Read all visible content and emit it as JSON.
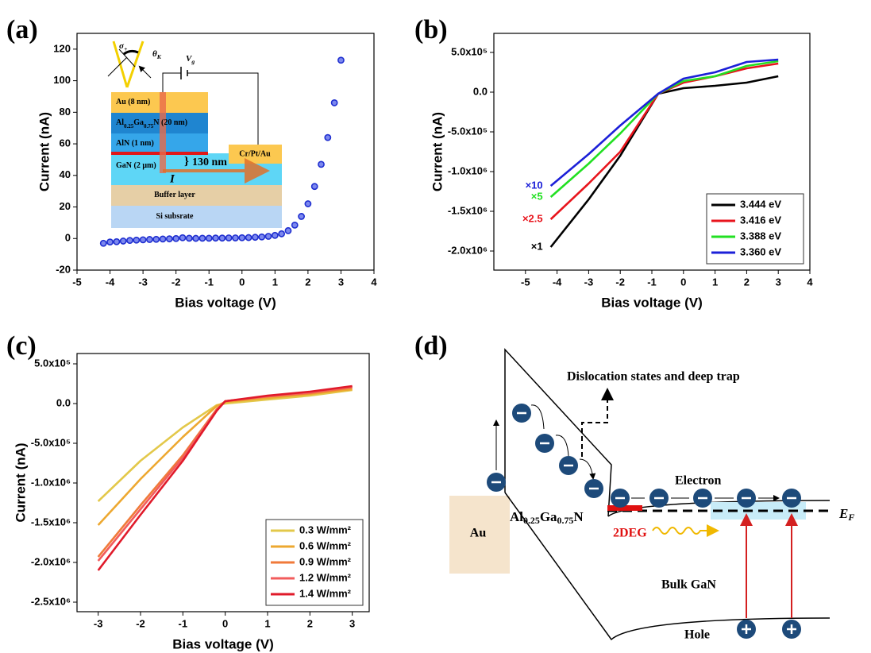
{
  "chart_data": [
    {
      "type": "scatter",
      "label": "(a)",
      "xlabel": "Bias voltage (V)",
      "ylabel": "Current (nA)",
      "color": "#1f2fd0",
      "x": [
        -4.2,
        -4.0,
        -3.8,
        -3.6,
        -3.4,
        -3.2,
        -3.0,
        -2.8,
        -2.6,
        -2.4,
        -2.2,
        -2.0,
        -1.8,
        -1.6,
        -1.4,
        -1.2,
        -1.0,
        -0.8,
        -0.6,
        -0.4,
        -0.2,
        0,
        0.2,
        0.4,
        0.6,
        0.8,
        1.0,
        1.2,
        1.4,
        1.6,
        1.8,
        2.0,
        2.2,
        2.4,
        2.6,
        2.8,
        3.0
      ],
      "values": [
        -3,
        -2.2,
        -2,
        -1.6,
        -1.2,
        -1,
        -0.8,
        -0.6,
        -0.5,
        -0.3,
        -0.2,
        0,
        0.5,
        0.2,
        0.1,
        0.2,
        0.2,
        0.3,
        0.3,
        0.4,
        0.4,
        0.5,
        0.6,
        0.8,
        1,
        1.4,
        2,
        3,
        5,
        8.5,
        14,
        22,
        33,
        47,
        64,
        86,
        113
      ],
      "xlim": [
        -5,
        4
      ],
      "xticks": [
        -5,
        -4,
        -3,
        -2,
        -1,
        0,
        1,
        2,
        3,
        4
      ],
      "ylim": [
        -20,
        130
      ],
      "yticks": [
        -20,
        0,
        20,
        40,
        60,
        80,
        100,
        120
      ],
      "inset": {
        "layers": [
          [
            "Au (8 nm)"
          ],
          [
            "Al",
            "0.25",
            "Ga",
            "0.75",
            "N (20 nm)"
          ],
          [
            "AlN (1 nm)"
          ],
          [
            "GaN (2 μm)"
          ],
          [
            "Buffer layer"
          ],
          [
            "Si subsrate"
          ]
        ],
        "contact": "Cr/Pt/Au",
        "depth": "130 nm",
        "current": "I",
        "polarization": [
          "σ",
          "+"
        ],
        "kerr_angle": [
          "θ",
          "K"
        ],
        "gate": [
          "V",
          "g"
        ]
      }
    },
    {
      "type": "line",
      "label": "(b)",
      "xlabel": "Bias voltage (V)",
      "ylabel": "Current (nA)",
      "legend": "lower right",
      "x": [
        -4.2,
        -3,
        -2,
        -0.8,
        0,
        1,
        2,
        3
      ],
      "series": [
        {
          "name": "3.444 eV",
          "color": "#000000",
          "values": [
            -1950000,
            -1350000,
            -800000,
            -20000,
            50000,
            80000,
            120000,
            200000
          ]
        },
        {
          "name": "3.416 eV",
          "color": "#e8141c",
          "values": [
            -1600000,
            -1150000,
            -750000,
            -20000,
            120000,
            200000,
            300000,
            360000
          ]
        },
        {
          "name": "3.388 eV",
          "color": "#22e022",
          "values": [
            -1320000,
            -900000,
            -520000,
            -20000,
            140000,
            200000,
            330000,
            390000
          ]
        },
        {
          "name": "3.360 eV",
          "color": "#1c20d8",
          "values": [
            -1180000,
            -780000,
            -420000,
            -20000,
            170000,
            250000,
            380000,
            410000
          ]
        }
      ],
      "annotations": [
        "×1",
        "×2.5",
        "×5",
        "×10"
      ],
      "xlim": [
        -6,
        4
      ],
      "xticks": [
        -5,
        -4,
        -3,
        -2,
        -1,
        0,
        1,
        2,
        3,
        4
      ],
      "ylim": [
        -2240000,
        740000
      ],
      "yticks": [
        {
          "value": -2000000,
          "label": "-2.0x10⁶"
        },
        {
          "value": -1500000,
          "label": "-1.5x10⁶"
        },
        {
          "value": -1000000,
          "label": "-1.0x10⁶"
        },
        {
          "value": -500000,
          "label": "-5.0x10⁵"
        },
        {
          "value": 0,
          "label": "0.0"
        },
        {
          "value": 500000,
          "label": "5.0x10⁵"
        }
      ]
    },
    {
      "type": "line",
      "label": "(c)",
      "xlabel": "Bias voltage (V)",
      "ylabel": "Current (nA)",
      "legend": "lower right",
      "x": [
        -3,
        -2,
        -1,
        -0.2,
        0,
        1,
        2,
        3
      ],
      "series": [
        {
          "name": "0.3 W/mm²",
          "color": "#e3c84a",
          "values": [
            -1230000,
            -720000,
            -300000,
            -20000,
            0,
            50000,
            100000,
            170000
          ]
        },
        {
          "name": "0.6 W/mm²",
          "color": "#eda830",
          "values": [
            -1530000,
            -950000,
            -420000,
            -30000,
            20000,
            70000,
            120000,
            180000
          ]
        },
        {
          "name": "0.9 W/mm²",
          "color": "#f07a3a",
          "values": [
            -1930000,
            -1280000,
            -650000,
            -70000,
            30000,
            90000,
            130000,
            200000
          ]
        },
        {
          "name": "1.2 W/mm²",
          "color": "#f25c5c",
          "values": [
            -1980000,
            -1330000,
            -680000,
            -80000,
            30000,
            90000,
            140000,
            210000
          ]
        },
        {
          "name": "1.4 W/mm²",
          "color": "#e01a2a",
          "values": [
            -2100000,
            -1400000,
            -720000,
            -90000,
            30000,
            100000,
            150000,
            220000
          ]
        }
      ],
      "xlim": [
        -3.5,
        3.4
      ],
      "xticks": [
        -3,
        -2,
        -1,
        0,
        1,
        2,
        3
      ],
      "ylim": [
        -2620000,
        630000
      ],
      "yticks": [
        {
          "value": -2500000,
          "label": "-2.5x10⁶"
        },
        {
          "value": -2000000,
          "label": "-2.0x10⁶"
        },
        {
          "value": -1500000,
          "label": "-1.5x10⁶"
        },
        {
          "value": -1000000,
          "label": "-1.0x10⁶"
        },
        {
          "value": -500000,
          "label": "-5.0x10⁵"
        },
        {
          "value": 0,
          "label": "0.0"
        },
        {
          "value": 500000,
          "label": "5.0x10⁵"
        }
      ]
    }
  ],
  "diagram": {
    "label": "(d)",
    "dislocation": "Dislocation states and deep trap",
    "electron": "Electron",
    "barrier": [
      "Al",
      "0.25",
      "Ga",
      "0.75",
      "N"
    ],
    "channel": "2DEG",
    "metal": "Au",
    "bulk": "Bulk GaN",
    "hole": "Hole",
    "fermi": [
      "E",
      "F"
    ]
  }
}
